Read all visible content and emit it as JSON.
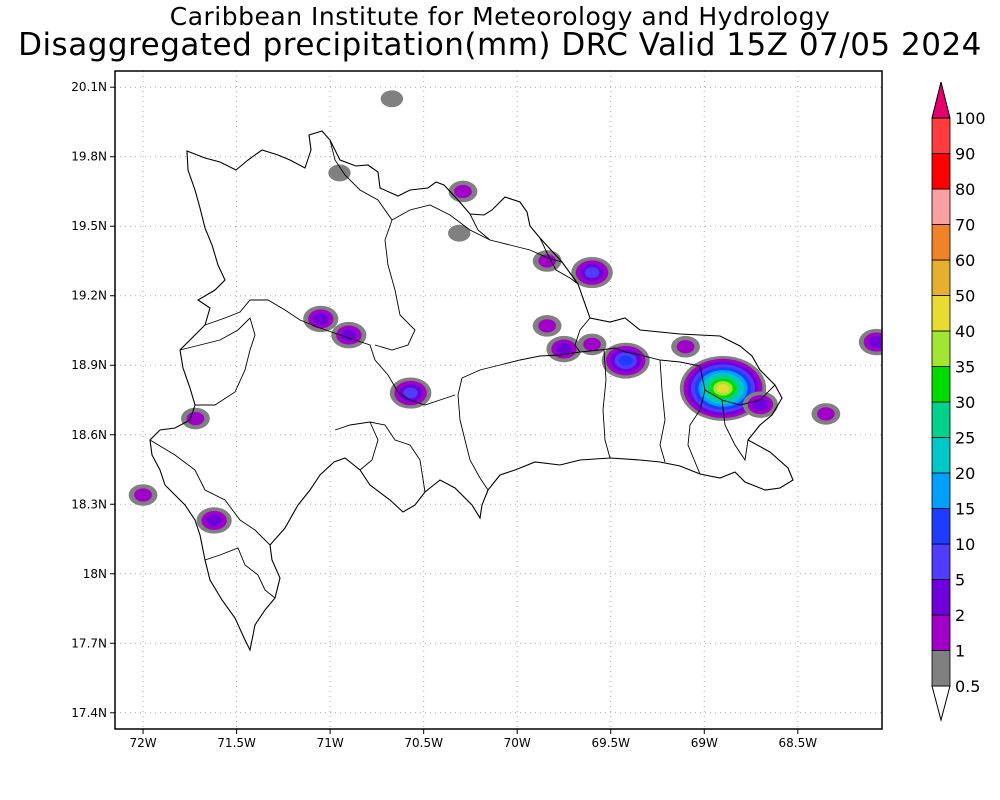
{
  "header": {
    "institute": "Caribbean Institute for Meteorology and Hydrology",
    "product": "Disaggregated precipitation(mm) DRC Valid 15Z 07/05 2024"
  },
  "map": {
    "region": "Dominican Republic",
    "lon_range": [
      -72.15,
      -68.05
    ],
    "lat_range": [
      17.33,
      20.17
    ],
    "lat_ticks": [
      {
        "value": 20.1,
        "label": "20.1N"
      },
      {
        "value": 19.8,
        "label": "19.8N"
      },
      {
        "value": 19.5,
        "label": "19.5N"
      },
      {
        "value": 19.2,
        "label": "19.2N"
      },
      {
        "value": 18.9,
        "label": "18.9N"
      },
      {
        "value": 18.6,
        "label": "18.6N"
      },
      {
        "value": 18.3,
        "label": "18.3N"
      },
      {
        "value": 18.0,
        "label": "18N"
      },
      {
        "value": 17.7,
        "label": "17.7N"
      },
      {
        "value": 17.4,
        "label": "17.4N"
      }
    ],
    "lon_ticks": [
      {
        "value": -72.0,
        "label": "72W"
      },
      {
        "value": -71.5,
        "label": "71.5W"
      },
      {
        "value": -71.0,
        "label": "71W"
      },
      {
        "value": -70.5,
        "label": "70.5W"
      },
      {
        "value": -70.0,
        "label": "70W"
      },
      {
        "value": -69.5,
        "label": "69.5W"
      },
      {
        "value": -69.0,
        "label": "69W"
      },
      {
        "value": -68.5,
        "label": "68.5W"
      }
    ],
    "grid": true
  },
  "colorbar": {
    "levels": [
      {
        "label": "0.5",
        "color": "#ffffff"
      },
      {
        "label": "1",
        "color": "#808080"
      },
      {
        "label": "2",
        "color": "#a000c8"
      },
      {
        "label": "5",
        "color": "#6e00dc"
      },
      {
        "label": "10",
        "color": "#503cff"
      },
      {
        "label": "15",
        "color": "#1e3cff"
      },
      {
        "label": "20",
        "color": "#00a0ff"
      },
      {
        "label": "25",
        "color": "#00c8c8"
      },
      {
        "label": "30",
        "color": "#00d28c"
      },
      {
        "label": "35",
        "color": "#00dc00"
      },
      {
        "label": "40",
        "color": "#a0e632"
      },
      {
        "label": "50",
        "color": "#e6dc32"
      },
      {
        "label": "60",
        "color": "#e6af2d"
      },
      {
        "label": "70",
        "color": "#f08228"
      },
      {
        "label": "80",
        "color": "#faa0a0"
      },
      {
        "label": "90",
        "color": "#ff0000"
      },
      {
        "label": "100",
        "color": "#ff3c3c"
      }
    ],
    "overflow_color": "#e6006e"
  },
  "precip_cells": [
    {
      "lon": -70.67,
      "lat": 20.05,
      "level": 1
    },
    {
      "lon": -70.95,
      "lat": 19.73,
      "level": 1
    },
    {
      "lon": -70.29,
      "lat": 19.65,
      "level": 2
    },
    {
      "lon": -70.31,
      "lat": 19.47,
      "level": 1
    },
    {
      "lon": -69.84,
      "lat": 19.35,
      "level": 2
    },
    {
      "lon": -69.6,
      "lat": 19.3,
      "level": 4
    },
    {
      "lon": -71.05,
      "lat": 19.1,
      "level": 3
    },
    {
      "lon": -70.9,
      "lat": 19.03,
      "level": 3
    },
    {
      "lon": -69.84,
      "lat": 19.07,
      "level": 2
    },
    {
      "lon": -69.75,
      "lat": 18.97,
      "level": 3
    },
    {
      "lon": -69.6,
      "lat": 18.99,
      "level": 2
    },
    {
      "lon": -69.42,
      "lat": 18.92,
      "level": 5
    },
    {
      "lon": -69.1,
      "lat": 18.98,
      "level": 2
    },
    {
      "lon": -68.9,
      "lat": 18.8,
      "level": 11
    },
    {
      "lon": -68.7,
      "lat": 18.73,
      "level": 3
    },
    {
      "lon": -70.57,
      "lat": 18.78,
      "level": 4
    },
    {
      "lon": -71.72,
      "lat": 18.67,
      "level": 2
    },
    {
      "lon": -68.35,
      "lat": 18.69,
      "level": 2
    },
    {
      "lon": -72.0,
      "lat": 18.34,
      "level": 2
    },
    {
      "lon": -71.62,
      "lat": 18.23,
      "level": 3
    },
    {
      "lon": -68.08,
      "lat": 19.0,
      "level": 3
    }
  ]
}
